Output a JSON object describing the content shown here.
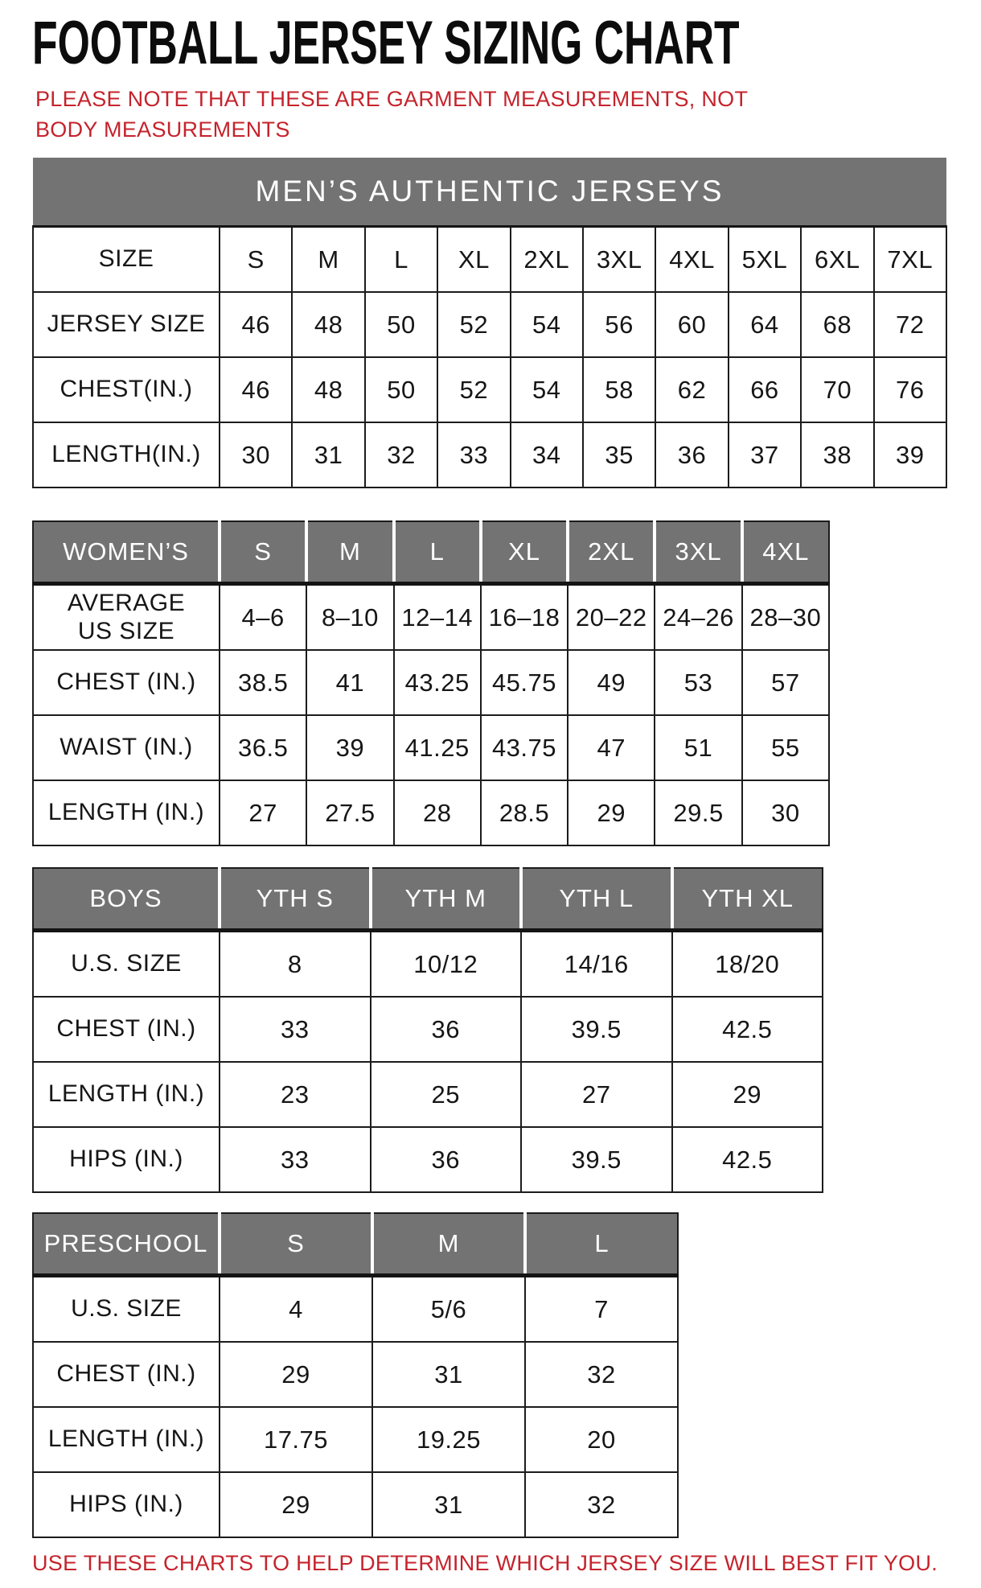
{
  "page": {
    "title": "FOOTBALL JERSEY SIZING CHART",
    "note": "PLEASE NOTE THAT THESE ARE GARMENT MEASUREMENTS, NOT BODY MEASUREMENTS",
    "footer": "USE THESE CHARTS TO HELP DETERMINE WHICH JERSEY SIZE WILL BEST FIT YOU.",
    "colors": {
      "accent_red": "#c5232c",
      "header_gray": "#737373",
      "border_black": "#1c1c1c"
    }
  },
  "tables": [
    {
      "id": "mens",
      "banner": "MEN’S AUTHENTIC JERSEYS",
      "rows": [
        {
          "label": "SIZE",
          "values": [
            "S",
            "M",
            "L",
            "XL",
            "2XL",
            "3XL",
            "4XL",
            "5XL",
            "6XL",
            "7XL"
          ]
        },
        {
          "label": "JERSEY SIZE",
          "values": [
            "46",
            "48",
            "50",
            "52",
            "54",
            "56",
            "60",
            "64",
            "68",
            "72"
          ]
        },
        {
          "label": "CHEST(IN.)",
          "values": [
            "46",
            "48",
            "50",
            "52",
            "54",
            "58",
            "62",
            "66",
            "70",
            "76"
          ]
        },
        {
          "label": "LENGTH(IN.)",
          "values": [
            "30",
            "31",
            "32",
            "33",
            "34",
            "35",
            "36",
            "37",
            "38",
            "39"
          ]
        }
      ]
    },
    {
      "id": "womens",
      "header": {
        "label": "WOMEN’S",
        "columns": [
          "S",
          "M",
          "L",
          "XL",
          "2XL",
          "3XL",
          "4XL"
        ]
      },
      "rows": [
        {
          "label": "AVERAGE\nUS SIZE",
          "values": [
            "4–6",
            "8–10",
            "12–14",
            "16–18",
            "20–22",
            "24–26",
            "28–30"
          ]
        },
        {
          "label": "CHEST (IN.)",
          "values": [
            "38.5",
            "41",
            "43.25",
            "45.75",
            "49",
            "53",
            "57"
          ]
        },
        {
          "label": "WAIST (IN.)",
          "values": [
            "36.5",
            "39",
            "41.25",
            "43.75",
            "47",
            "51",
            "55"
          ]
        },
        {
          "label": "LENGTH (IN.)",
          "values": [
            "27",
            "27.5",
            "28",
            "28.5",
            "29",
            "29.5",
            "30"
          ]
        }
      ]
    },
    {
      "id": "boys",
      "header": {
        "label": "BOYS",
        "columns": [
          "YTH S",
          "YTH M",
          "YTH L",
          "YTH XL"
        ]
      },
      "rows": [
        {
          "label": "U.S. SIZE",
          "values": [
            "8",
            "10/12",
            "14/16",
            "18/20"
          ]
        },
        {
          "label": "CHEST (IN.)",
          "values": [
            "33",
            "36",
            "39.5",
            "42.5"
          ]
        },
        {
          "label": "LENGTH (IN.)",
          "values": [
            "23",
            "25",
            "27",
            "29"
          ]
        },
        {
          "label": "HIPS (IN.)",
          "values": [
            "33",
            "36",
            "39.5",
            "42.5"
          ]
        }
      ]
    },
    {
      "id": "preschool",
      "header": {
        "label": "PRESCHOOL",
        "columns": [
          "S",
          "M",
          "L"
        ]
      },
      "rows": [
        {
          "label": "U.S. SIZE",
          "values": [
            "4",
            "5/6",
            "7"
          ]
        },
        {
          "label": "CHEST (IN.)",
          "values": [
            "29",
            "31",
            "32"
          ]
        },
        {
          "label": "LENGTH (IN.)",
          "values": [
            "17.75",
            "19.25",
            "20"
          ]
        },
        {
          "label": "HIPS (IN.)",
          "values": [
            "29",
            "31",
            "32"
          ]
        }
      ]
    }
  ]
}
